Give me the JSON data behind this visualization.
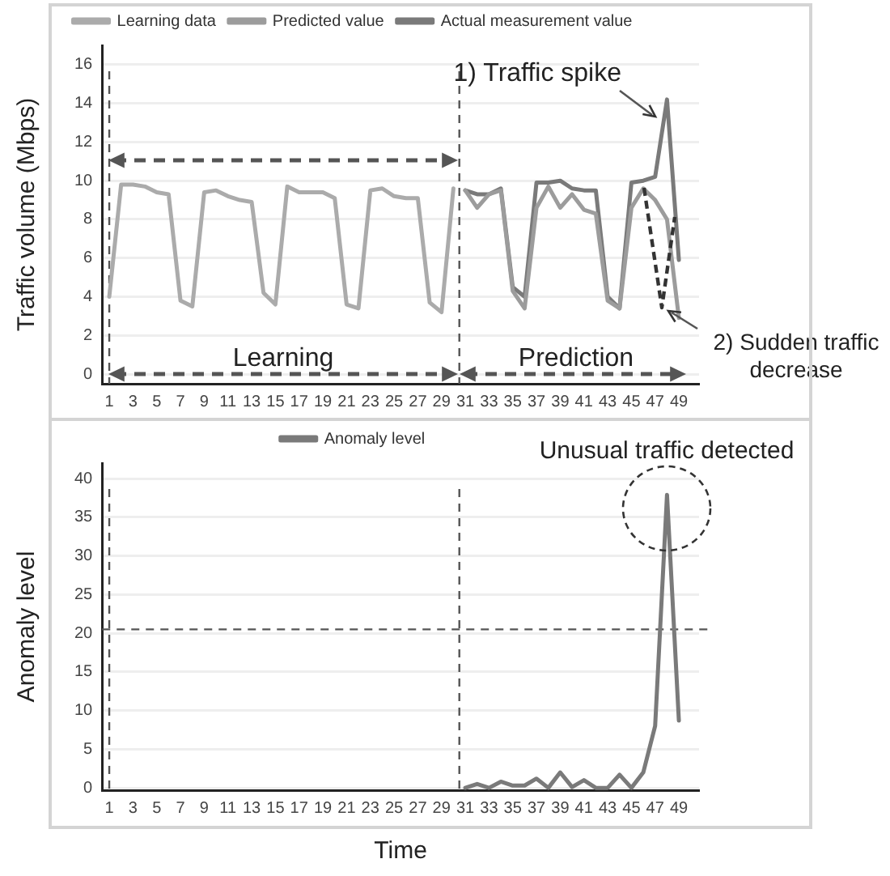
{
  "chart_data": [
    {
      "type": "line",
      "ylabel": "Traffic volume (Mbps)",
      "xlim": [
        0.4,
        50.7
      ],
      "xticks": [
        1,
        3,
        5,
        7,
        9,
        11,
        13,
        15,
        17,
        19,
        21,
        23,
        25,
        27,
        29,
        31,
        33,
        35,
        37,
        39,
        41,
        43,
        45,
        47,
        49
      ],
      "ylim": [
        -0.5,
        17
      ],
      "yticks": [
        0,
        2,
        4,
        6,
        8,
        10,
        12,
        14,
        16
      ],
      "grid": "y",
      "legend": "top",
      "marker": "none",
      "line_style": "solid",
      "series": [
        {
          "name": "Learning data",
          "color": "#ababab",
          "x": [
            1,
            2,
            3,
            4,
            5,
            6,
            7,
            8,
            9,
            10,
            11,
            12,
            13,
            14,
            15,
            16,
            17,
            18,
            19,
            20,
            21,
            22,
            23,
            24,
            25,
            26,
            27,
            28,
            29,
            30
          ],
          "values": [
            4.0,
            9.8,
            9.8,
            9.7,
            9.4,
            9.3,
            3.8,
            3.5,
            9.4,
            9.5,
            9.2,
            9.0,
            8.9,
            4.2,
            3.6,
            9.7,
            9.4,
            9.4,
            9.4,
            9.1,
            3.6,
            3.4,
            9.5,
            9.6,
            9.2,
            9.1,
            9.1,
            3.7,
            3.2,
            9.6
          ]
        },
        {
          "name": "Predicted value",
          "color": "#9c9c9c",
          "x": [
            31,
            32,
            33,
            34,
            35,
            36,
            37,
            38,
            39,
            40,
            41,
            42,
            43,
            44,
            45,
            46,
            47,
            48,
            49
          ],
          "values": [
            9.5,
            8.6,
            9.3,
            9.5,
            4.3,
            3.4,
            8.6,
            9.7,
            8.6,
            9.3,
            8.5,
            8.3,
            3.8,
            3.4,
            8.6,
            9.6,
            9.0,
            8.0,
            2.9
          ]
        },
        {
          "name": "Actual measurement value",
          "color": "#7a7a7a",
          "x": [
            31,
            32,
            33,
            34,
            35,
            36,
            37,
            38,
            39,
            40,
            41,
            42,
            43,
            44,
            45,
            46,
            47,
            48,
            49
          ],
          "values": [
            9.5,
            9.3,
            9.3,
            9.6,
            4.5,
            4.0,
            9.9,
            9.9,
            10.0,
            9.6,
            9.5,
            9.5,
            4.0,
            3.4,
            9.9,
            10.0,
            10.2,
            14.2,
            5.9
          ]
        }
      ],
      "ref_lines": [
        {
          "axis": "x",
          "value": 1
        },
        {
          "axis": "x",
          "value": 30.5
        }
      ],
      "annotations": [
        "Learning",
        "Prediction",
        "1) Traffic spike",
        "2) Sudden traffic decrease"
      ]
    },
    {
      "type": "line",
      "xlabel": "Time",
      "ylabel": "Anomaly level",
      "xlim": [
        0.4,
        50.7
      ],
      "xticks": [
        1,
        3,
        5,
        7,
        9,
        11,
        13,
        15,
        17,
        19,
        21,
        23,
        25,
        27,
        29,
        31,
        33,
        35,
        37,
        39,
        41,
        43,
        45,
        47,
        49
      ],
      "ylim": [
        -0.3,
        42
      ],
      "yticks": [
        0,
        5,
        10,
        15,
        20,
        25,
        30,
        35,
        40
      ],
      "grid": "y",
      "legend": "top",
      "marker": "none",
      "line_style": "solid",
      "series": [
        {
          "name": "Anomaly level",
          "color": "#7a7a7a",
          "x": [
            31,
            32,
            33,
            34,
            35,
            36,
            37,
            38,
            39,
            40,
            41,
            42,
            43,
            44,
            45,
            46,
            47,
            48,
            49
          ],
          "values": [
            0,
            0.5,
            0,
            0.8,
            0.3,
            0.3,
            1.2,
            0,
            2.0,
            0.1,
            1.0,
            0,
            0,
            1.7,
            0,
            2.0,
            8.0,
            37.9,
            8.7
          ]
        }
      ],
      "ref_lines": [
        {
          "axis": "x",
          "value": 1
        },
        {
          "axis": "x",
          "value": 30.5
        },
        {
          "axis": "y",
          "value": 20.5
        }
      ],
      "annotations": [
        "Unusual traffic detected"
      ]
    }
  ]
}
